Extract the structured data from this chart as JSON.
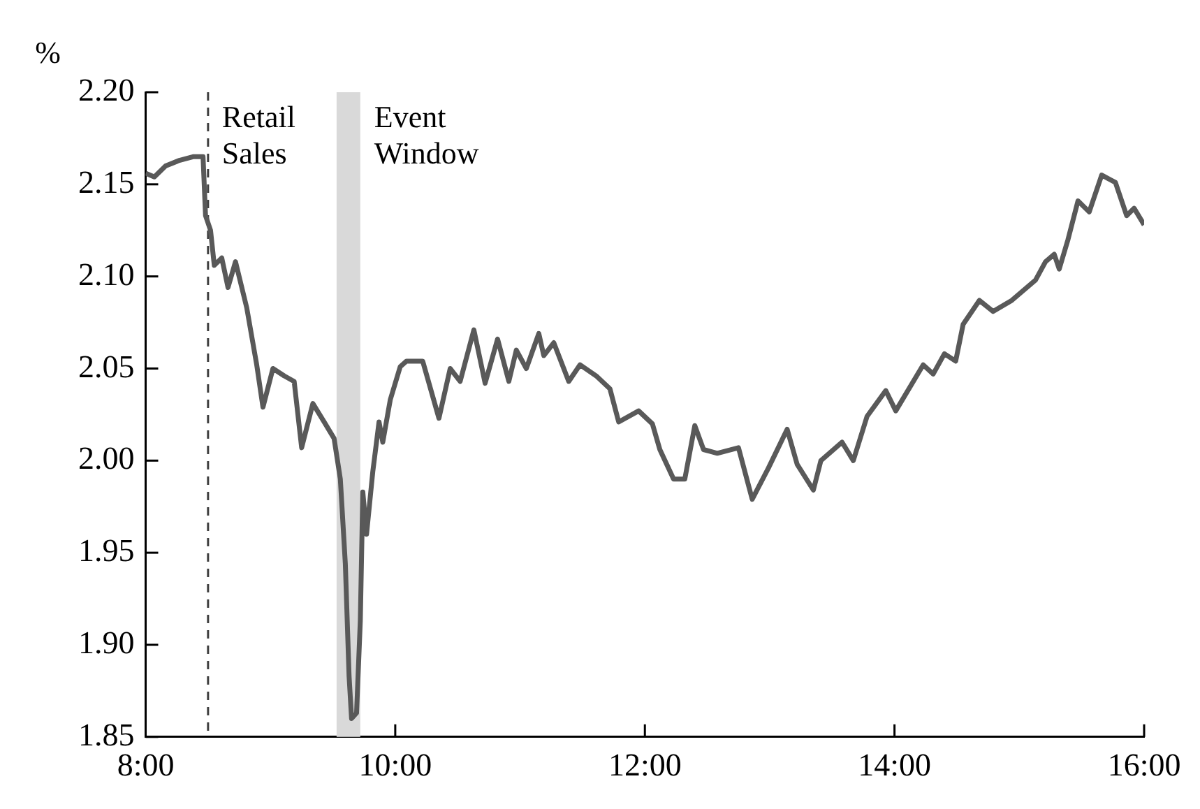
{
  "chart_data": {
    "type": "line",
    "ylabel": "%",
    "xlim": [
      8,
      16
    ],
    "xticks": [
      {
        "value": 8,
        "label": "8:00"
      },
      {
        "value": 10,
        "label": "10:00"
      },
      {
        "value": 12,
        "label": "12:00"
      },
      {
        "value": 14,
        "label": "14:00"
      },
      {
        "value": 16,
        "label": "16:00"
      }
    ],
    "ylim": [
      1.85,
      2.2
    ],
    "yticks": [
      {
        "value": 1.85,
        "label": "1.85"
      },
      {
        "value": 1.9,
        "label": "1.90"
      },
      {
        "value": 1.95,
        "label": "1.95"
      },
      {
        "value": 2,
        "label": "2.00"
      },
      {
        "value": 2.05,
        "label": "2.05"
      },
      {
        "value": 2.1,
        "label": "2.10"
      },
      {
        "value": 2.15,
        "label": "2.15"
      },
      {
        "value": 2.2,
        "label": "2.20"
      }
    ],
    "grid": false,
    "legend": false,
    "marker": "none",
    "line_style": "solid",
    "ref_lines": [
      {
        "axis": "x",
        "value": 8.5,
        "label": "Retail\nSales",
        "color": "#404040",
        "line_style": "dashed"
      }
    ],
    "bands": [
      {
        "axis": "x",
        "from": 9.53,
        "to": 9.72,
        "label": "Event\nWindow",
        "color": "#d9d9d9"
      }
    ],
    "series": [
      {
        "color": "#595959",
        "x": [
          8,
          8.07,
          8.16,
          8.27,
          8.38,
          8.46,
          8.48,
          8.52,
          8.55,
          8.61,
          8.66,
          8.72,
          8.81,
          8.89,
          8.94,
          9.02,
          9.11,
          9.19,
          9.25,
          9.34,
          9.43,
          9.51,
          9.56,
          9.6,
          9.63,
          9.65,
          9.69,
          9.72,
          9.74,
          9.77,
          9.82,
          9.87,
          9.9,
          9.96,
          10.04,
          10.09,
          10.22,
          10.35,
          10.44,
          10.52,
          10.63,
          10.72,
          10.82,
          10.91,
          10.97,
          11.05,
          11.15,
          11.19,
          11.27,
          11.39,
          11.48,
          11.61,
          11.72,
          11.79,
          11.95,
          12.06,
          12.12,
          12.23,
          12.32,
          12.4,
          12.47,
          12.58,
          12.75,
          12.86,
          12.99,
          13.14,
          13.22,
          13.35,
          13.41,
          13.58,
          13.67,
          13.78,
          13.93,
          14.01,
          14.23,
          14.31,
          14.4,
          14.49,
          14.55,
          14.68,
          14.79,
          14.94,
          15.13,
          15.21,
          15.28,
          15.32,
          15.39,
          15.47,
          15.56,
          15.66,
          15.77,
          15.86,
          15.92,
          16
        ],
        "values": [
          2.156,
          2.154,
          2.16,
          2.163,
          2.165,
          2.165,
          2.133,
          2.125,
          2.106,
          2.11,
          2.094,
          2.108,
          2.083,
          2.052,
          2.029,
          2.05,
          2.046,
          2.043,
          2.007,
          2.031,
          2.021,
          2.012,
          1.99,
          1.944,
          1.883,
          1.86,
          1.863,
          1.913,
          1.983,
          1.96,
          1.994,
          2.021,
          2.01,
          2.033,
          2.051,
          2.054,
          2.054,
          2.023,
          2.05,
          2.043,
          2.071,
          2.042,
          2.066,
          2.043,
          2.06,
          2.05,
          2.069,
          2.057,
          2.064,
          2.043,
          2.052,
          2.046,
          2.039,
          2.021,
          2.027,
          2.02,
          2.006,
          1.99,
          1.99,
          2.019,
          2.006,
          2.004,
          2.007,
          1.979,
          1.996,
          2.017,
          1.998,
          1.984,
          2,
          2.01,
          2,
          2.024,
          2.038,
          2.027,
          2.052,
          2.047,
          2.058,
          2.054,
          2.074,
          2.087,
          2.081,
          2.087,
          2.098,
          2.108,
          2.112,
          2.104,
          2.12,
          2.141,
          2.135,
          2.155,
          2.151,
          2.133,
          2.137,
          2.128
        ]
      }
    ]
  }
}
